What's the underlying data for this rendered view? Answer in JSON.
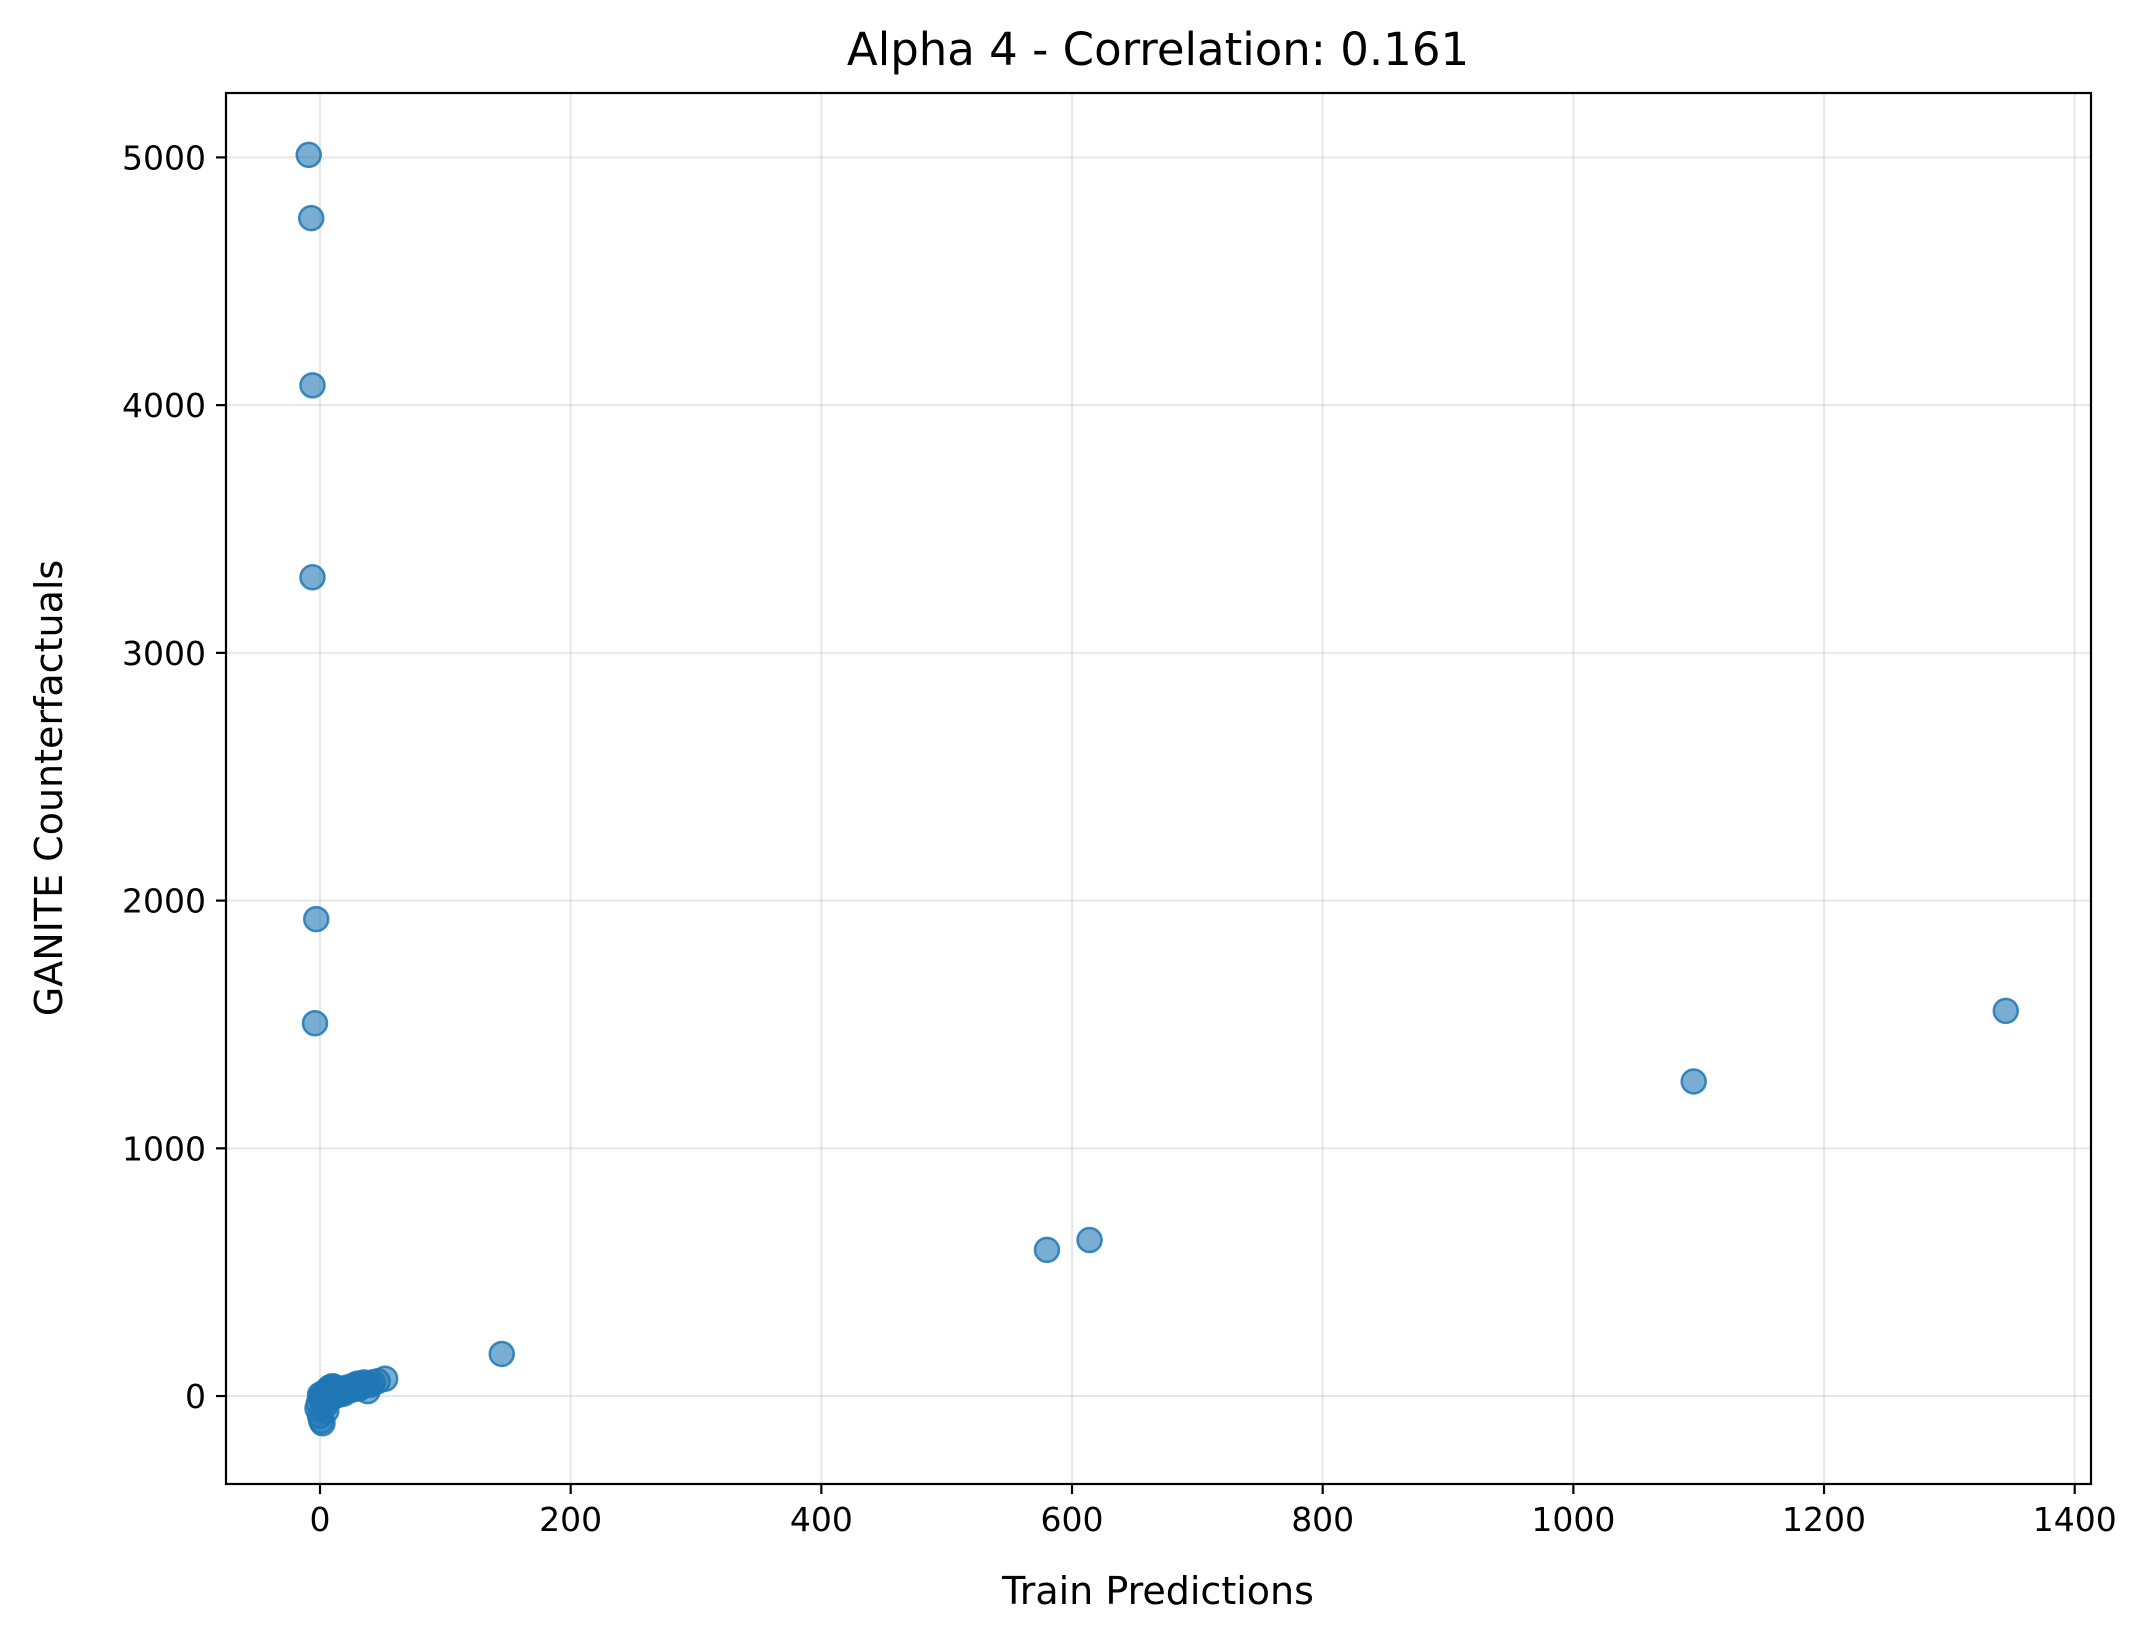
{
  "chart_data": {
    "type": "scatter",
    "title": "Alpha 4 - Correlation: 0.161",
    "xlabel": "Train Predictions",
    "ylabel": "GANITE Counterfactuals",
    "xlim": [
      -75,
      1413
    ],
    "ylim": [
      -355,
      5260
    ],
    "xticks": [
      0,
      200,
      400,
      600,
      800,
      1000,
      1200,
      1400
    ],
    "yticks": [
      0,
      1000,
      2000,
      3000,
      4000,
      5000
    ],
    "xtick_labels": [
      "0",
      "200",
      "400",
      "600",
      "800",
      "1000",
      "1200",
      "1400"
    ],
    "ytick_labels": [
      "0",
      "1000",
      "2000",
      "3000",
      "4000",
      "5000"
    ],
    "grid": true,
    "marker_color": "#1f77b4",
    "marker_alpha": 0.6,
    "series": [
      {
        "name": "counterfactuals",
        "points": [
          [
            -9,
            5010
          ],
          [
            -7,
            4755
          ],
          [
            -6,
            4080
          ],
          [
            -6,
            3305
          ],
          [
            -3,
            1925
          ],
          [
            -4,
            1505
          ],
          [
            145,
            170
          ],
          [
            580,
            590
          ],
          [
            614,
            630
          ],
          [
            1096,
            1270
          ],
          [
            1345,
            1555
          ],
          [
            1,
            -100
          ],
          [
            2,
            -110
          ],
          [
            0,
            -80
          ],
          [
            -2,
            -50
          ],
          [
            -1,
            -30
          ],
          [
            1,
            -10
          ],
          [
            0,
            5
          ],
          [
            2,
            10
          ],
          [
            3,
            -20
          ],
          [
            4,
            -40
          ],
          [
            5,
            -60
          ],
          [
            3,
            0
          ],
          [
            4,
            15
          ],
          [
            5,
            20
          ],
          [
            6,
            25
          ],
          [
            7,
            30
          ],
          [
            8,
            35
          ],
          [
            6,
            5
          ],
          [
            7,
            -5
          ],
          [
            8,
            10
          ],
          [
            9,
            20
          ],
          [
            10,
            30
          ],
          [
            11,
            25
          ],
          [
            12,
            20
          ],
          [
            13,
            15
          ],
          [
            14,
            10
          ],
          [
            15,
            5
          ],
          [
            12,
            35
          ],
          [
            10,
            40
          ],
          [
            16,
            20
          ],
          [
            18,
            25
          ],
          [
            20,
            30
          ],
          [
            22,
            35
          ],
          [
            24,
            30
          ],
          [
            26,
            40
          ],
          [
            28,
            45
          ],
          [
            30,
            50
          ],
          [
            32,
            35
          ],
          [
            34,
            40
          ],
          [
            36,
            50
          ],
          [
            38,
            20
          ],
          [
            40,
            45
          ],
          [
            42,
            55
          ],
          [
            46,
            60
          ],
          [
            52,
            70
          ],
          [
            9,
            -10
          ],
          [
            11,
            0
          ],
          [
            13,
            25
          ],
          [
            15,
            30
          ],
          [
            17,
            15
          ],
          [
            19,
            10
          ],
          [
            21,
            20
          ],
          [
            25,
            25
          ],
          [
            27,
            35
          ],
          [
            29,
            40
          ],
          [
            31,
            30
          ],
          [
            33,
            45
          ],
          [
            35,
            55
          ]
        ]
      }
    ]
  }
}
